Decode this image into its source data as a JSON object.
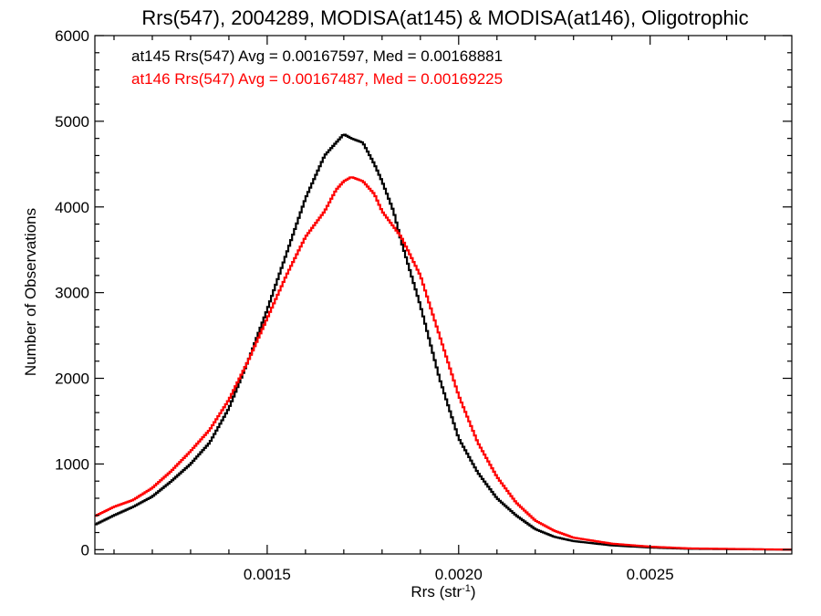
{
  "chart_data": {
    "type": "line",
    "title": "Rrs(547), 2004289, MODISA(at145) & MODISA(at146), Oligotrophic",
    "xlabel": "Rrs (str",
    "xlabel_sup": "-1",
    "xlabel_close": ")",
    "ylabel": "Number of Observations",
    "xlim": [
      0.00105,
      0.00287
    ],
    "ylim": [
      -50,
      6000
    ],
    "x_ticks": [
      0.0015,
      0.002,
      0.0025
    ],
    "x_tick_labels": [
      "0.0015",
      "0.0020",
      "0.0025"
    ],
    "x_minor_step": 0.0001,
    "y_ticks": [
      0,
      1000,
      2000,
      3000,
      4000,
      5000,
      6000
    ],
    "y_tick_labels": [
      "0",
      "1000",
      "2000",
      "3000",
      "4000",
      "5000",
      "6000"
    ],
    "y_minor_step": 200,
    "grid": false,
    "legend_placement": "top-left",
    "series": [
      {
        "color": "#000000",
        "legend": "at145 Rrs(547) Avg = 0.00167597, Med = 0.00168881",
        "points": [
          [
            0.00105,
            290
          ],
          [
            0.0011,
            400
          ],
          [
            0.00115,
            500
          ],
          [
            0.0012,
            620
          ],
          [
            0.00125,
            800
          ],
          [
            0.0013,
            1000
          ],
          [
            0.00135,
            1250
          ],
          [
            0.0014,
            1650
          ],
          [
            0.00145,
            2200
          ],
          [
            0.0015,
            2800
          ],
          [
            0.00155,
            3450
          ],
          [
            0.0016,
            4100
          ],
          [
            0.00163,
            4400
          ],
          [
            0.00165,
            4600
          ],
          [
            0.00168,
            4750
          ],
          [
            0.0017,
            4850
          ],
          [
            0.00172,
            4800
          ],
          [
            0.00175,
            4750
          ],
          [
            0.00178,
            4500
          ],
          [
            0.0018,
            4300
          ],
          [
            0.00183,
            3950
          ],
          [
            0.00185,
            3600
          ],
          [
            0.0019,
            2850
          ],
          [
            0.00195,
            2000
          ],
          [
            0.002,
            1300
          ],
          [
            0.00205,
            900
          ],
          [
            0.0021,
            600
          ],
          [
            0.00215,
            400
          ],
          [
            0.0022,
            240
          ],
          [
            0.00225,
            150
          ],
          [
            0.0023,
            100
          ],
          [
            0.0024,
            50
          ],
          [
            0.0025,
            25
          ],
          [
            0.0026,
            10
          ],
          [
            0.00287,
            0
          ]
        ]
      },
      {
        "color": "#ff0000",
        "legend": "at146 Rrs(547) Avg = 0.00167487, Med = 0.00169225",
        "points": [
          [
            0.00105,
            390
          ],
          [
            0.0011,
            500
          ],
          [
            0.00115,
            580
          ],
          [
            0.0012,
            720
          ],
          [
            0.00125,
            920
          ],
          [
            0.0013,
            1150
          ],
          [
            0.00135,
            1400
          ],
          [
            0.0014,
            1750
          ],
          [
            0.00145,
            2200
          ],
          [
            0.0015,
            2700
          ],
          [
            0.00155,
            3200
          ],
          [
            0.0016,
            3650
          ],
          [
            0.00165,
            3950
          ],
          [
            0.00168,
            4200
          ],
          [
            0.0017,
            4300
          ],
          [
            0.00172,
            4350
          ],
          [
            0.00175,
            4300
          ],
          [
            0.00178,
            4150
          ],
          [
            0.0018,
            3950
          ],
          [
            0.00185,
            3650
          ],
          [
            0.0019,
            3200
          ],
          [
            0.00195,
            2500
          ],
          [
            0.002,
            1800
          ],
          [
            0.00205,
            1250
          ],
          [
            0.0021,
            850
          ],
          [
            0.00215,
            550
          ],
          [
            0.0022,
            340
          ],
          [
            0.00225,
            220
          ],
          [
            0.0023,
            140
          ],
          [
            0.0024,
            70
          ],
          [
            0.0025,
            35
          ],
          [
            0.0026,
            15
          ],
          [
            0.00287,
            0
          ]
        ]
      }
    ]
  }
}
